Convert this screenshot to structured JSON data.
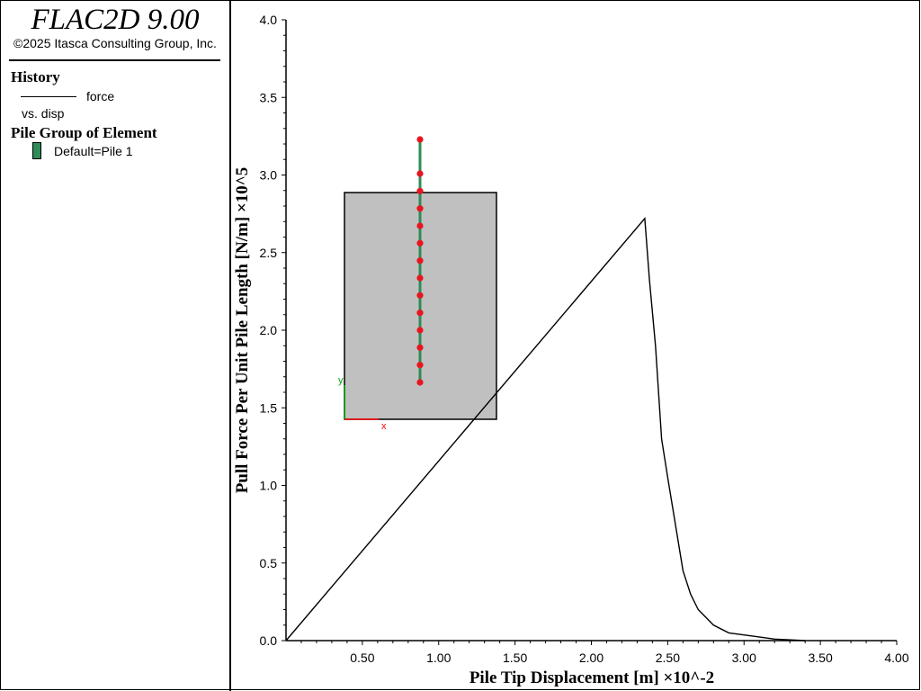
{
  "app": {
    "title": "FLAC2D 9.00",
    "copyright": "©2025 Itasca Consulting Group, Inc."
  },
  "legend": {
    "history_title": "History",
    "history_series": "force",
    "history_vs": "vs. disp",
    "pile_title": "Pile Group of Element",
    "pile_item": "Default=Pile 1",
    "pile_color": "#2e8b57"
  },
  "inset": {
    "box_color": "#c0c0c0",
    "pile_color": "#2e8b57",
    "node_color": "#e8141e",
    "axis_x_label": "x",
    "axis_y_label": "y",
    "axis_x_color": "#ff0000",
    "axis_y_color": "#00aa00",
    "node_count": 14
  },
  "chart_data": {
    "type": "line",
    "xlabel": "Pile Tip Displacement [m] ×10^-2",
    "ylabel": "Pull Force Per Unit Pile Length [N/m] ×10^5",
    "xlim": [
      0,
      4.0
    ],
    "ylim": [
      0,
      4.0
    ],
    "xticks": [
      "0.50",
      "1.00",
      "1.50",
      "2.00",
      "2.50",
      "3.00",
      "3.50",
      "4.00"
    ],
    "yticks": [
      "0.0",
      "0.5",
      "1.0",
      "1.5",
      "2.0",
      "2.5",
      "3.0",
      "3.5",
      "4.0"
    ],
    "grid": false,
    "series": [
      {
        "x": [
          0.0,
          2.35,
          2.38,
          2.42,
          2.46,
          2.5,
          2.55,
          2.6,
          2.65,
          2.7,
          2.8,
          2.9,
          3.05,
          3.2,
          3.4
        ],
        "y": [
          0.0,
          2.72,
          2.33,
          1.9,
          1.3,
          1.05,
          0.75,
          0.45,
          0.3,
          0.2,
          0.1,
          0.05,
          0.03,
          0.01,
          0.0
        ]
      }
    ]
  }
}
